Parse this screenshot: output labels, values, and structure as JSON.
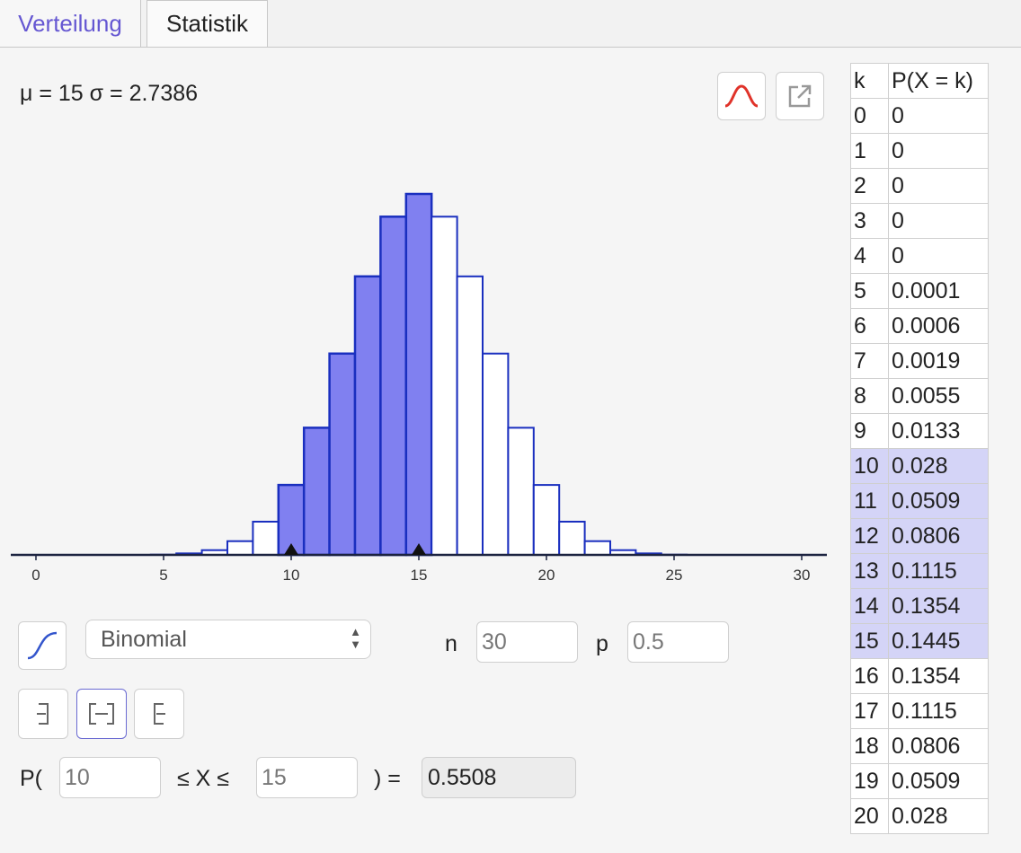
{
  "tabs": [
    {
      "label": "Verteilung",
      "active": true
    },
    {
      "label": "Statistik",
      "active": false
    }
  ],
  "stats": {
    "text": "μ = 15 σ = 2.7386"
  },
  "toolbar": {
    "icons": [
      "normal-overlay-icon",
      "export-icon"
    ]
  },
  "distribution": {
    "selected": "Binomial",
    "n_label": "n",
    "n_value": "30",
    "p_label": "p",
    "p_value": "0.5"
  },
  "interval": {
    "buttons": [
      "left-sided",
      "two-sided",
      "right-sided"
    ],
    "selected": "two-sided"
  },
  "probability": {
    "prefix": "P(",
    "lower": "10",
    "middle": "≤ X ≤",
    "upper": "15",
    "equals": ") =",
    "result": "0.5508"
  },
  "colors": {
    "highlight": "#8080f0",
    "bar_stroke": "#1a2fbf",
    "table_highlight": "#d4d4f7"
  },
  "table": {
    "headers": [
      "k",
      "P(X = k)"
    ],
    "rows": [
      [
        "0",
        "0"
      ],
      [
        "1",
        "0"
      ],
      [
        "2",
        "0"
      ],
      [
        "3",
        "0"
      ],
      [
        "4",
        "0"
      ],
      [
        "5",
        "0.0001"
      ],
      [
        "6",
        "0.0006"
      ],
      [
        "7",
        "0.0019"
      ],
      [
        "8",
        "0.0055"
      ],
      [
        "9",
        "0.0133"
      ],
      [
        "10",
        "0.028"
      ],
      [
        "11",
        "0.0509"
      ],
      [
        "12",
        "0.0806"
      ],
      [
        "13",
        "0.1115"
      ],
      [
        "14",
        "0.1354"
      ],
      [
        "15",
        "0.1445"
      ],
      [
        "16",
        "0.1354"
      ],
      [
        "17",
        "0.1115"
      ],
      [
        "18",
        "0.0806"
      ],
      [
        "19",
        "0.0509"
      ],
      [
        "20",
        "0.028"
      ]
    ],
    "highlight_range": [
      10,
      15
    ]
  },
  "chart_data": {
    "type": "bar",
    "x": [
      0,
      1,
      2,
      3,
      4,
      5,
      6,
      7,
      8,
      9,
      10,
      11,
      12,
      13,
      14,
      15,
      16,
      17,
      18,
      19,
      20,
      21,
      22,
      23,
      24,
      25,
      26,
      27,
      28,
      29,
      30
    ],
    "values": [
      0,
      0,
      0,
      0,
      0,
      0.0001,
      0.0006,
      0.0019,
      0.0055,
      0.0133,
      0.028,
      0.0509,
      0.0806,
      0.1115,
      0.1354,
      0.1445,
      0.1354,
      0.1115,
      0.0806,
      0.0509,
      0.028,
      0.0133,
      0.0055,
      0.0019,
      0.0006,
      0.0001,
      0,
      0,
      0,
      0,
      0
    ],
    "highlight_range": [
      10,
      15
    ],
    "xticks": [
      "0",
      "5",
      "10",
      "15",
      "20",
      "25",
      "30"
    ],
    "xlim": [
      -1,
      31
    ]
  }
}
